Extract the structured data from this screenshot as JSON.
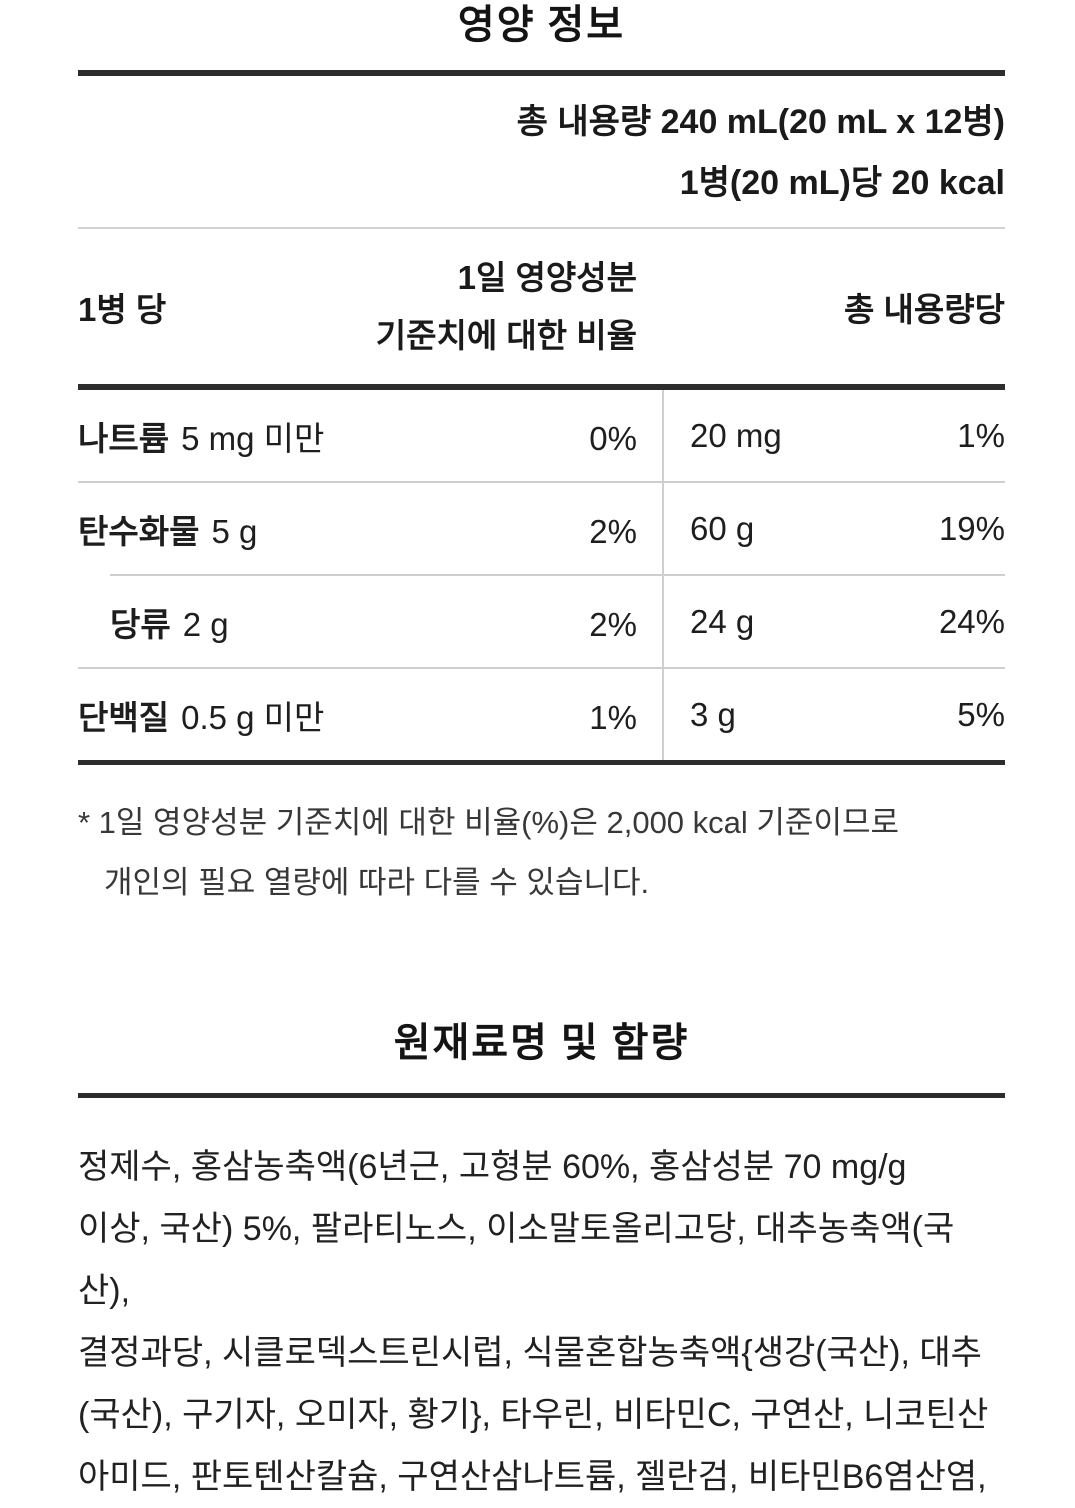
{
  "nutrition": {
    "title": "영양 정보",
    "total_volume": "총 내용량 240 mL(20 mL x 12병)",
    "per_bottle_kcal": "1병(20 mL)당 20 kcal",
    "header": {
      "per_bottle": "1병 당",
      "daily_value_line1": "1일 영양성분",
      "daily_value_line2": "기준치에 대한 비율",
      "per_total": "총 내용량당"
    },
    "rows": [
      {
        "name": "나트륨",
        "amount": "5 mg 미만",
        "daily_pct": "0%",
        "total_amount": "20 mg",
        "total_pct": "1%"
      },
      {
        "name": "탄수화물",
        "amount": "5 g",
        "daily_pct": "2%",
        "total_amount": "60 g",
        "total_pct": "19%"
      },
      {
        "name": "당류",
        "amount": "2 g",
        "daily_pct": "2%",
        "total_amount": "24 g",
        "total_pct": "24%"
      },
      {
        "name": "단백질",
        "amount": "0.5 g 미만",
        "daily_pct": "1%",
        "total_amount": "3 g",
        "total_pct": "5%"
      }
    ],
    "footnote_line1": "* 1일 영양성분 기준치에 대한 비율(%)은 2,000 kcal 기준이므로",
    "footnote_line2": "개인의 필요 열량에 따라 다를 수 있습니다."
  },
  "ingredients": {
    "title": "원재료명 및 함량",
    "lines": [
      "정제수, 홍삼농축액(6년근, 고형분 60%, 홍삼성분 70 mg/g",
      "이상, 국산) 5%, 팔라티노스, 이소말토올리고당, 대추농축액(국산),",
      "결정과당, 시클로덱스트린시럽, 식물혼합농축액{생강(국산), 대추",
      "(국산), 구기자, 오미자, 황기}, 타우린, 비타민C, 구연산, 니코틴산",
      "아미드, 판토텐산칼슘, 구연산삼나트륨, 젤란검, 비타민B6염산염,"
    ]
  },
  "colors": {
    "text": "#1e1e1e",
    "rule_dark": "#2d2d2d",
    "rule_light": "#cfcfcf"
  }
}
